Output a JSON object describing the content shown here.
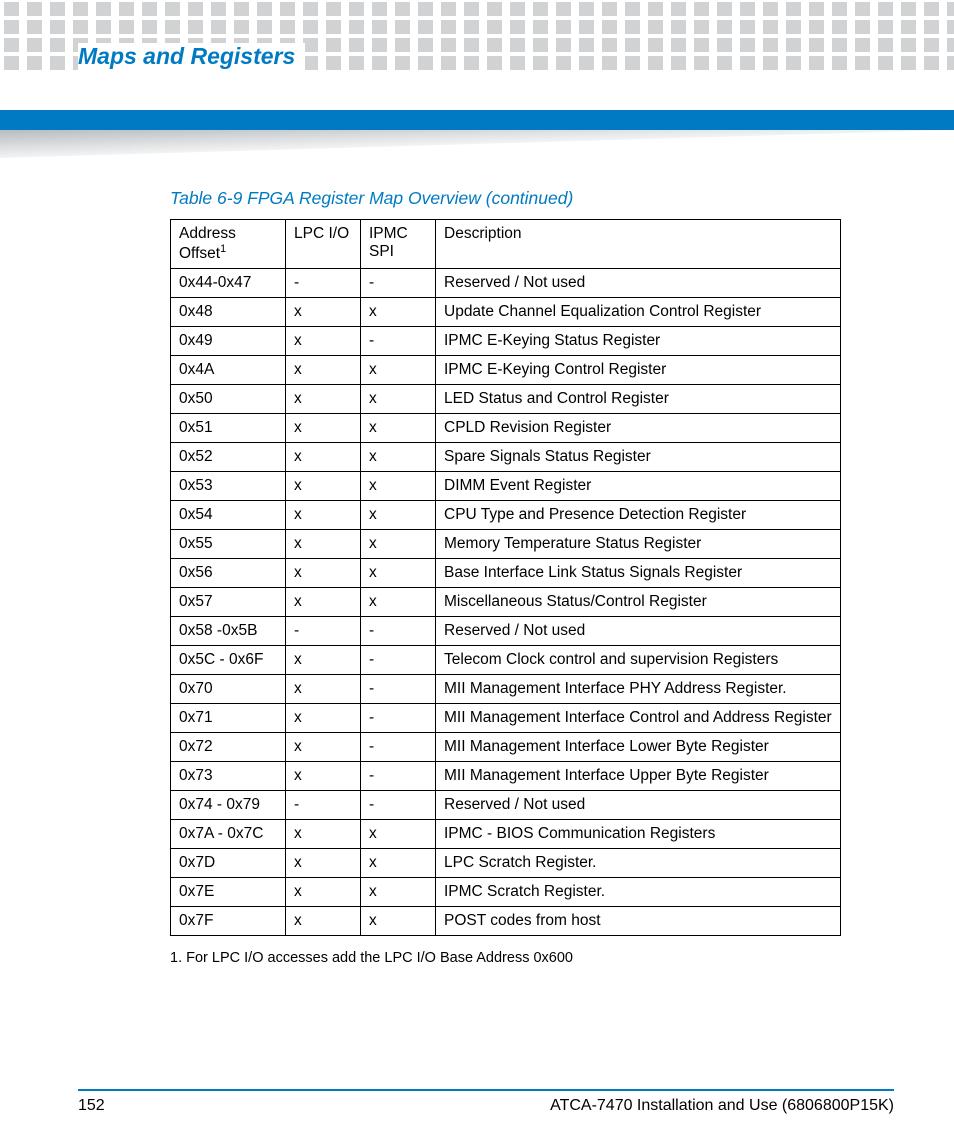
{
  "page": {
    "chapter_title": "Maps and Registers",
    "page_number": "152",
    "doc_title": "ATCA-7470 Installation and Use (6806800P15K)"
  },
  "colors": {
    "accent": "#007ac2",
    "dot": "#d0d2d4",
    "wedge": "#9fa3a7",
    "text": "#000000",
    "background": "#ffffff"
  },
  "table": {
    "caption": "Table 6-9 FPGA Register Map Overview (continued)",
    "columns": [
      {
        "label": "Address Offset",
        "sup": "1",
        "class": "col-addr"
      },
      {
        "label": "LPC I/O",
        "class": "col-lpc"
      },
      {
        "label": "IPMC SPI",
        "class": "col-ipmc"
      },
      {
        "label": "Description",
        "class": "col-desc"
      }
    ],
    "rows": [
      [
        "0x44-0x47",
        "-",
        "-",
        "Reserved / Not used"
      ],
      [
        "0x48",
        "x",
        "x",
        "Update Channel Equalization Control Register"
      ],
      [
        "0x49",
        "x",
        "-",
        "IPMC E-Keying Status Register"
      ],
      [
        "0x4A",
        "x",
        "x",
        "IPMC E-Keying Control Register"
      ],
      [
        "0x50",
        "x",
        "x",
        "LED Status and Control Register"
      ],
      [
        "0x51",
        "x",
        "x",
        "CPLD Revision Register"
      ],
      [
        "0x52",
        "x",
        "x",
        "Spare Signals Status Register"
      ],
      [
        "0x53",
        "x",
        "x",
        "DIMM Event Register"
      ],
      [
        "0x54",
        "x",
        "x",
        "CPU Type and Presence Detection Register"
      ],
      [
        "0x55",
        "x",
        "x",
        "Memory Temperature Status Register"
      ],
      [
        "0x56",
        "x",
        "x",
        "Base Interface Link Status Signals Register"
      ],
      [
        "0x57",
        "x",
        "x",
        "Miscellaneous Status/Control Register"
      ],
      [
        "0x58 -0x5B",
        "-",
        "-",
        "Reserved / Not used"
      ],
      [
        "0x5C - 0x6F",
        "x",
        "-",
        "Telecom Clock control and supervision Registers"
      ],
      [
        "0x70",
        "x",
        "-",
        "MII Management Interface PHY Address Register."
      ],
      [
        "0x71",
        "x",
        "-",
        "MII Management Interface Control and Address Register"
      ],
      [
        "0x72",
        "x",
        "-",
        "MII Management Interface Lower Byte Register"
      ],
      [
        "0x73",
        "x",
        "-",
        "MII Management Interface Upper Byte Register"
      ],
      [
        "0x74 - 0x79",
        "-",
        "-",
        "Reserved / Not used"
      ],
      [
        "0x7A - 0x7C",
        "x",
        "x",
        "IPMC - BIOS Communication Registers"
      ],
      [
        "0x7D",
        "x",
        "x",
        "LPC Scratch Register."
      ],
      [
        "0x7E",
        "x",
        "x",
        "IPMC Scratch Register."
      ],
      [
        "0x7F",
        "x",
        "x",
        "POST codes from host"
      ]
    ],
    "footnote": "1. For LPC I/O accesses add the LPC I/O Base Address 0x600"
  }
}
